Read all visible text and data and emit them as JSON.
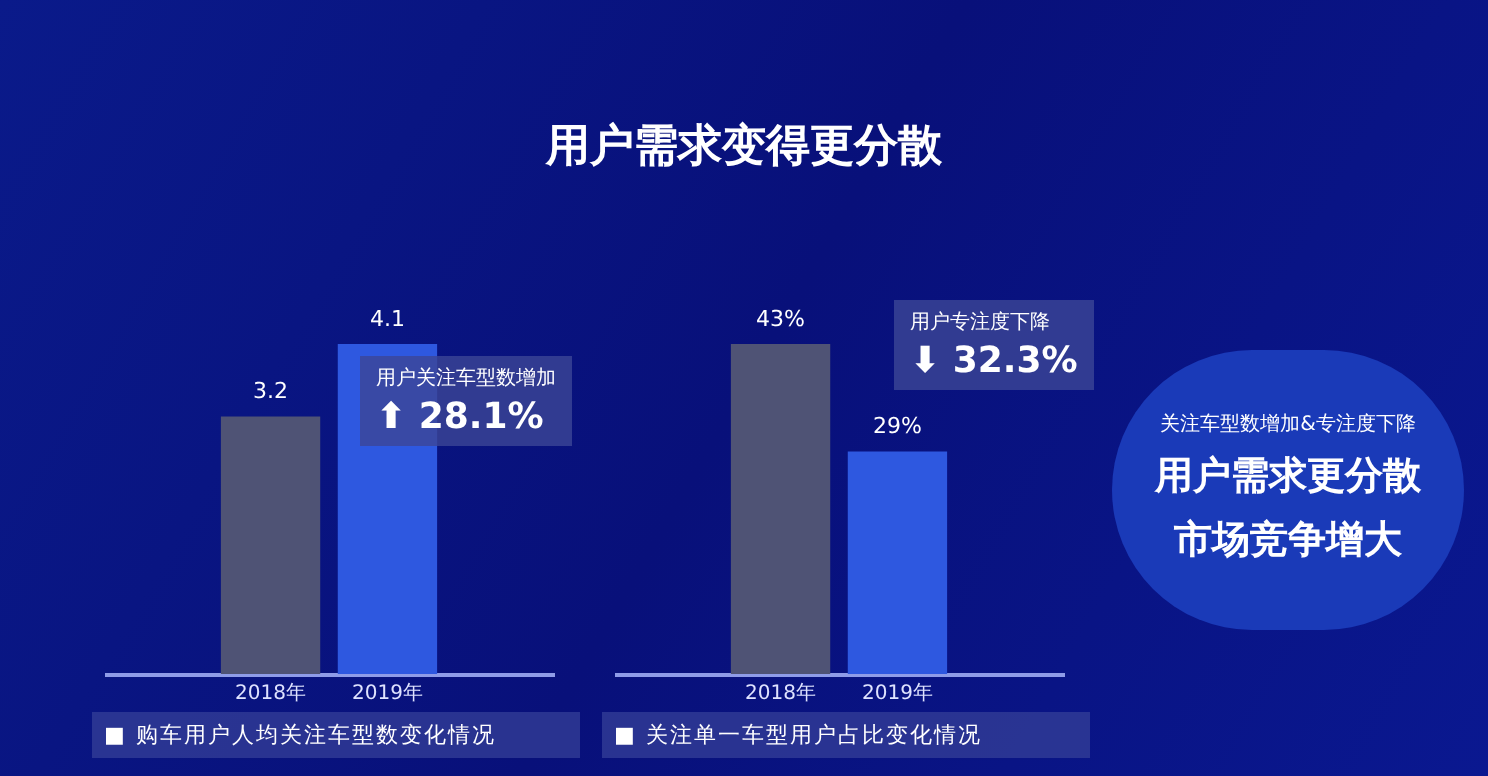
{
  "chart_data": [
    {
      "type": "other",
      "title": "用户需求变得更分散"
    },
    {
      "type": "bar",
      "categories": [
        "2018年",
        "2019年"
      ],
      "values": [
        3.2,
        4.1
      ],
      "colors": [
        "#4f5375",
        "#2e58e0"
      ],
      "data_labels": true,
      "tick_labels": "x",
      "annotations": [
        "用户关注车型数增加",
        "⬆ 28.1%",
        "■ 购车用户人均关注车型数变化情况"
      ]
    },
    {
      "type": "bar",
      "categories": [
        "2018年",
        "2019年"
      ],
      "values": [
        43,
        29
      ],
      "colors": [
        "#4f5375",
        "#2e58e0"
      ],
      "value_labels": [
        "43%",
        "29%"
      ],
      "tick_labels": "x",
      "annotations": [
        "用户专注度下降",
        "⬇ 32.3%",
        "■ 关注单一车型用户占比变化情况"
      ]
    },
    {
      "type": "other",
      "annotations": [
        "关注车型数增加&专注度下降",
        "用户需求更分散",
        "市场竞争增大"
      ]
    }
  ]
}
